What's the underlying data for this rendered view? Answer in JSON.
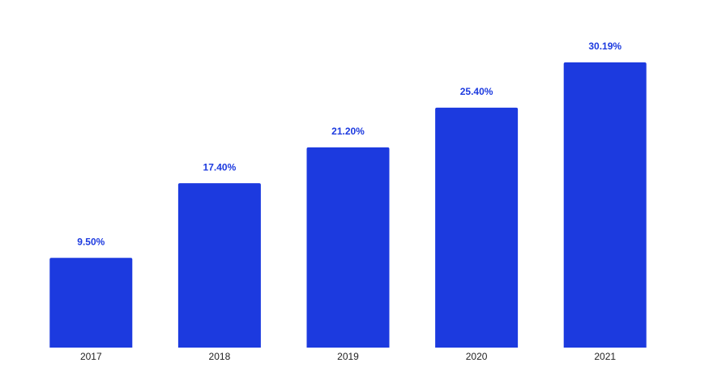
{
  "chart_data": {
    "type": "bar",
    "categories": [
      "2017",
      "2018",
      "2019",
      "2020",
      "2021"
    ],
    "values": [
      9.5,
      17.4,
      21.2,
      25.4,
      30.19
    ],
    "value_labels": [
      "9.50%",
      "17.40%",
      "21.20%",
      "25.40%",
      "30.19%"
    ],
    "color": "#1c3adf"
  }
}
